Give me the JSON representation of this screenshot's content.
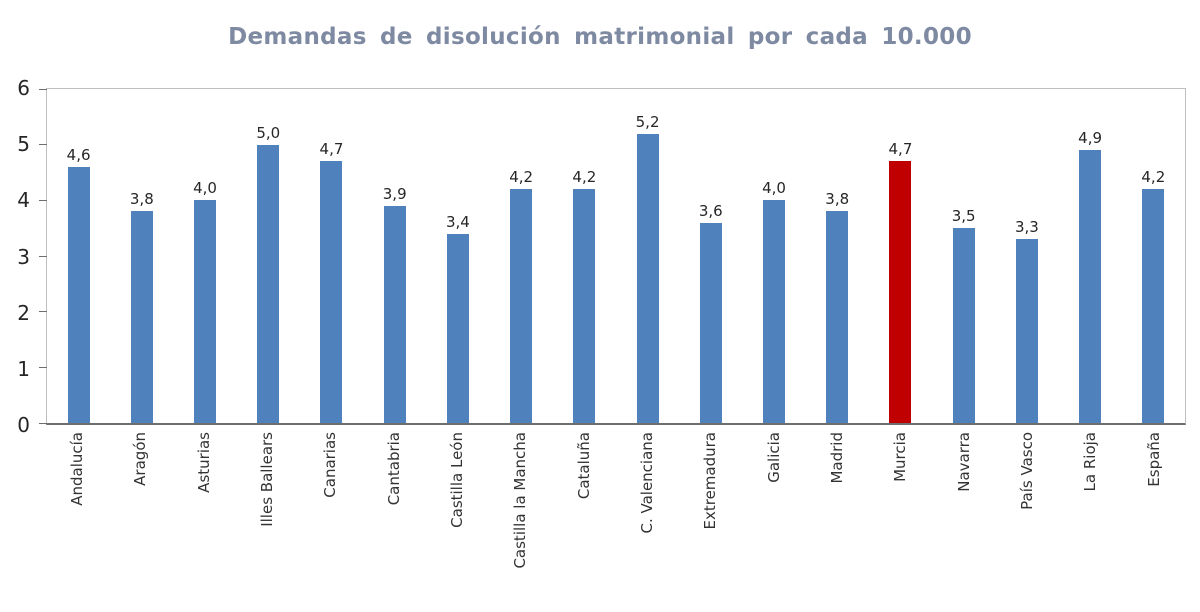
{
  "title": "Demandas de disolución matrimonial por cada 10.000",
  "chart_data": {
    "type": "bar",
    "title": "Demandas de disolución matrimonial por cada 10.000",
    "categories": [
      "Andalucía",
      "Aragón",
      "Asturias",
      "Illes Ballears",
      "Canarias",
      "Cantabria",
      "Castilla León",
      "Castilla la Mancha",
      "Cataluña",
      "C. Valenciana",
      "Extremadura",
      "Galicia",
      "Madrid",
      "Murcia",
      "Navarra",
      "País Vasco",
      "La Rioja",
      "España"
    ],
    "values": [
      4.6,
      3.8,
      4.0,
      5.0,
      4.7,
      3.9,
      3.4,
      4.2,
      4.2,
      5.2,
      3.6,
      4.0,
      3.8,
      4.7,
      3.5,
      3.3,
      4.9,
      4.2
    ],
    "value_labels": [
      "4,6",
      "3,8",
      "4,0",
      "5,0",
      "4,7",
      "3,9",
      "3,4",
      "4,2",
      "4,2",
      "5,2",
      "3,6",
      "4,0",
      "3,8",
      "4,7",
      "3,5",
      "3,3",
      "4,9",
      "4,2"
    ],
    "highlight_category": "Murcia",
    "bar_color": "#4F81BD",
    "highlight_color": "#C00000",
    "xlabel": "",
    "ylabel": "",
    "ylim": [
      0,
      6
    ],
    "yticks": [
      0,
      1,
      2,
      3,
      4,
      5,
      6
    ],
    "grid": false,
    "legend": false
  },
  "colors": {
    "title_text": "#7E8AA2",
    "axis_text": "#262626",
    "plot_border": "#BFBFBF",
    "axis_line": "#6E6E6E"
  }
}
